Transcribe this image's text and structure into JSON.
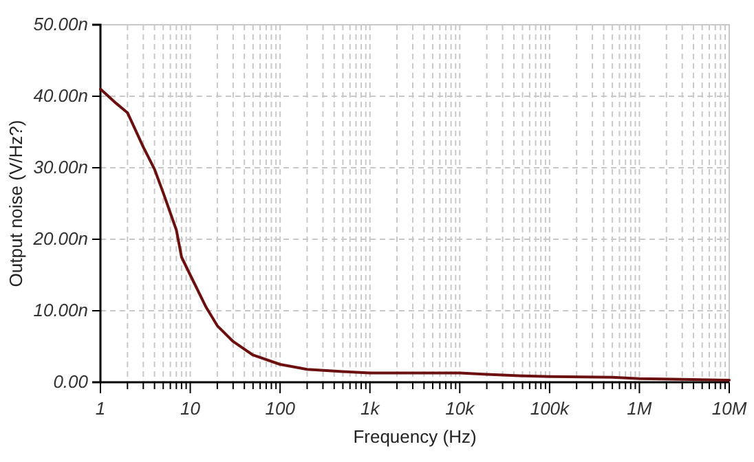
{
  "chart_data": {
    "type": "line",
    "xlabel": "Frequency (Hz)",
    "ylabel": "Output noise (V/Hz?)",
    "log": "x",
    "grid": true,
    "marker": "none",
    "line_style": "solid",
    "xlim": [
      1,
      10000000
    ],
    "ylim": [
      0,
      50
    ],
    "xticks": [
      {
        "value": 1,
        "label": "1"
      },
      {
        "value": 2,
        "label": null
      },
      {
        "value": 3,
        "label": null
      },
      {
        "value": 4,
        "label": null
      },
      {
        "value": 5,
        "label": null
      },
      {
        "value": 6,
        "label": null
      },
      {
        "value": 7,
        "label": null
      },
      {
        "value": 8,
        "label": null
      },
      {
        "value": 9,
        "label": null
      },
      {
        "value": 10,
        "label": "10"
      },
      {
        "value": 20,
        "label": null
      },
      {
        "value": 30,
        "label": null
      },
      {
        "value": 40,
        "label": null
      },
      {
        "value": 50,
        "label": null
      },
      {
        "value": 60,
        "label": null
      },
      {
        "value": 70,
        "label": null
      },
      {
        "value": 80,
        "label": null
      },
      {
        "value": 90,
        "label": null
      },
      {
        "value": 100,
        "label": "100"
      },
      {
        "value": 200,
        "label": null
      },
      {
        "value": 300,
        "label": null
      },
      {
        "value": 400,
        "label": null
      },
      {
        "value": 500,
        "label": null
      },
      {
        "value": 600,
        "label": null
      },
      {
        "value": 700,
        "label": null
      },
      {
        "value": 800,
        "label": null
      },
      {
        "value": 900,
        "label": null
      },
      {
        "value": 1000,
        "label": "1k"
      },
      {
        "value": 2000,
        "label": null
      },
      {
        "value": 3000,
        "label": null
      },
      {
        "value": 4000,
        "label": null
      },
      {
        "value": 5000,
        "label": null
      },
      {
        "value": 6000,
        "label": null
      },
      {
        "value": 7000,
        "label": null
      },
      {
        "value": 8000,
        "label": null
      },
      {
        "value": 9000,
        "label": null
      },
      {
        "value": 10000,
        "label": "10k"
      },
      {
        "value": 20000,
        "label": null
      },
      {
        "value": 30000,
        "label": null
      },
      {
        "value": 40000,
        "label": null
      },
      {
        "value": 50000,
        "label": null
      },
      {
        "value": 60000,
        "label": null
      },
      {
        "value": 70000,
        "label": null
      },
      {
        "value": 80000,
        "label": null
      },
      {
        "value": 90000,
        "label": null
      },
      {
        "value": 100000,
        "label": "100k"
      },
      {
        "value": 200000,
        "label": null
      },
      {
        "value": 300000,
        "label": null
      },
      {
        "value": 400000,
        "label": null
      },
      {
        "value": 500000,
        "label": null
      },
      {
        "value": 600000,
        "label": null
      },
      {
        "value": 700000,
        "label": null
      },
      {
        "value": 800000,
        "label": null
      },
      {
        "value": 900000,
        "label": null
      },
      {
        "value": 1000000,
        "label": "1M"
      },
      {
        "value": 2000000,
        "label": null
      },
      {
        "value": 3000000,
        "label": null
      },
      {
        "value": 4000000,
        "label": null
      },
      {
        "value": 5000000,
        "label": null
      },
      {
        "value": 6000000,
        "label": null
      },
      {
        "value": 7000000,
        "label": null
      },
      {
        "value": 8000000,
        "label": null
      },
      {
        "value": 9000000,
        "label": null
      },
      {
        "value": 10000000,
        "label": "10M"
      }
    ],
    "yticks": [
      {
        "value": 0,
        "label": "0.00"
      },
      {
        "value": 10,
        "label": "10.00n"
      },
      {
        "value": 20,
        "label": "20.00n"
      },
      {
        "value": 30,
        "label": "30.00n"
      },
      {
        "value": 40,
        "label": "40.00n"
      },
      {
        "value": 50,
        "label": "50.00n"
      }
    ],
    "series": [
      {
        "color": "#6b0f0f",
        "x": [
          1,
          1.5,
          2,
          3,
          4,
          5,
          7,
          8,
          10,
          15,
          20,
          30,
          50,
          100,
          200,
          500,
          1000,
          10000,
          20000,
          50000,
          100000,
          500000,
          1000000,
          3000000,
          10000000
        ],
        "values": [
          41,
          39,
          37.7,
          32.9,
          29.8,
          26.5,
          21.3,
          17.5,
          15,
          10.5,
          7.9,
          5.7,
          3.8,
          2.5,
          1.8,
          1.5,
          1.3,
          1.3,
          1.1,
          0.9,
          0.8,
          0.7,
          0.5,
          0.4,
          0.3
        ]
      }
    ]
  }
}
